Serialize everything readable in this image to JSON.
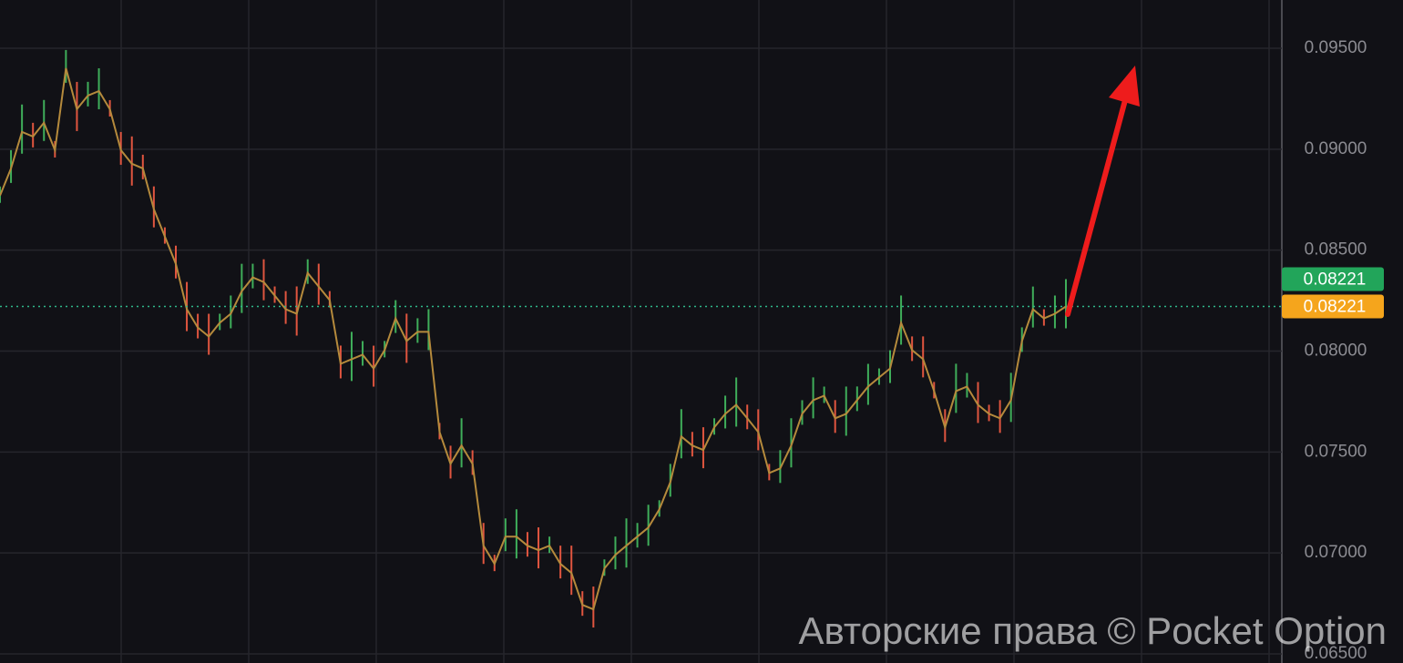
{
  "chart_data": {
    "type": "line",
    "watermark": "Авторские права © Pocket Option",
    "values": [
      0.0877,
      0.08905,
      0.09086,
      0.09063,
      0.09131,
      0.08995,
      0.09401,
      0.09198,
      0.09266,
      0.09288,
      0.09198,
      0.08995,
      0.08928,
      0.08905,
      0.08703,
      0.08568,
      0.08432,
      0.08207,
      0.08117,
      0.08072,
      0.0814,
      0.08185,
      0.08297,
      0.08365,
      0.08342,
      0.08275,
      0.08207,
      0.08185,
      0.08387,
      0.0832,
      0.08252,
      0.07937,
      0.0796,
      0.07982,
      0.07914,
      0.08005,
      0.08162,
      0.0805,
      0.08095,
      0.08095,
      0.07599,
      0.07441,
      0.07532,
      0.07441,
      0.07036,
      0.06946,
      0.07081,
      0.07081,
      0.07036,
      0.07014,
      0.07036,
      0.06946,
      0.06901,
      0.06743,
      0.06721,
      0.06923,
      0.06991,
      0.07036,
      0.07081,
      0.07126,
      0.07216,
      0.07351,
      0.07577,
      0.07532,
      0.0751,
      0.07622,
      0.07689,
      0.07734,
      0.07667,
      0.07599,
      0.07396,
      0.07419,
      0.07532,
      0.07689,
      0.07757,
      0.07779,
      0.07667,
      0.07689,
      0.07757,
      0.07824,
      0.07869,
      0.07914,
      0.0814,
      0.08005,
      0.0796,
      0.07802,
      0.07622,
      0.07802,
      0.07824,
      0.07734,
      0.07689,
      0.07667,
      0.07757,
      0.0805,
      0.08207,
      0.08162,
      0.08185,
      0.08221
    ],
    "color": "#b58a3c",
    "up_color": "#3fae5a",
    "down_color": "#e0553f",
    "ylim": [
      0.06455,
      0.09739
    ],
    "yticks": [
      {
        "value": 0.065,
        "label": "0.06500"
      },
      {
        "value": 0.07,
        "label": "0.07000"
      },
      {
        "value": 0.075,
        "label": "0.07500"
      },
      {
        "value": 0.08,
        "label": "0.08000"
      },
      {
        "value": 0.085,
        "label": "0.08500"
      },
      {
        "value": 0.09,
        "label": "0.09000"
      },
      {
        "value": 0.095,
        "label": "0.09500"
      }
    ],
    "grid": true,
    "current_price": {
      "value": 0.08221,
      "label": "0.08221",
      "colors": [
        "#22a55a",
        "#f5a51c"
      ]
    }
  }
}
